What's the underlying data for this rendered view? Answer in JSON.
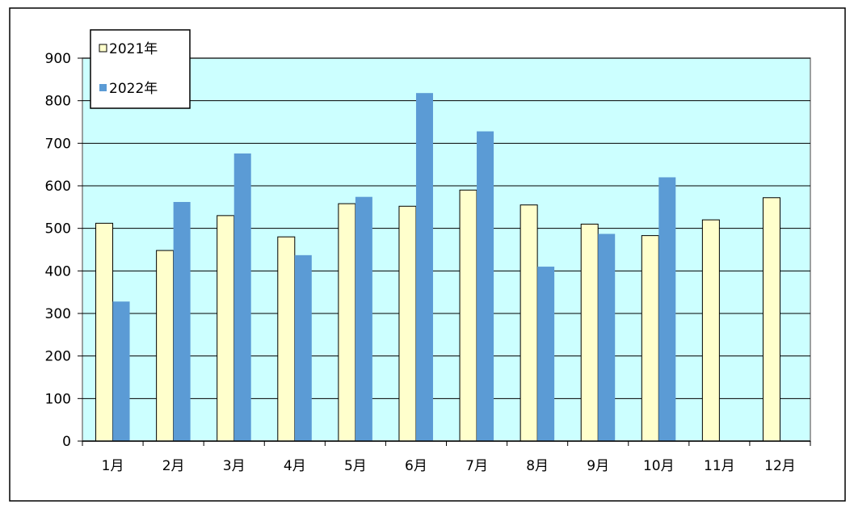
{
  "chart_data": {
    "type": "bar",
    "title": "",
    "xlabel": "",
    "ylabel": "",
    "categories": [
      "1月",
      "2月",
      "3月",
      "4月",
      "5月",
      "6月",
      "7月",
      "8月",
      "9月",
      "10月",
      "11月",
      "12月"
    ],
    "series": [
      {
        "name": "2021年",
        "color": "#ffffcc",
        "values": [
          512,
          448,
          530,
          480,
          558,
          552,
          590,
          555,
          510,
          483,
          520,
          572
        ]
      },
      {
        "name": "2022年",
        "color": "#5b9bd5",
        "values": [
          328,
          562,
          676,
          437,
          574,
          818,
          728,
          410,
          487,
          620,
          null,
          null
        ]
      }
    ],
    "ylim": [
      0,
      900
    ],
    "yticks": [
      0,
      100,
      200,
      300,
      400,
      500,
      600,
      700,
      800,
      900
    ],
    "grid": true,
    "plot_background": "#ccffff",
    "legend_placement": "top-left"
  }
}
